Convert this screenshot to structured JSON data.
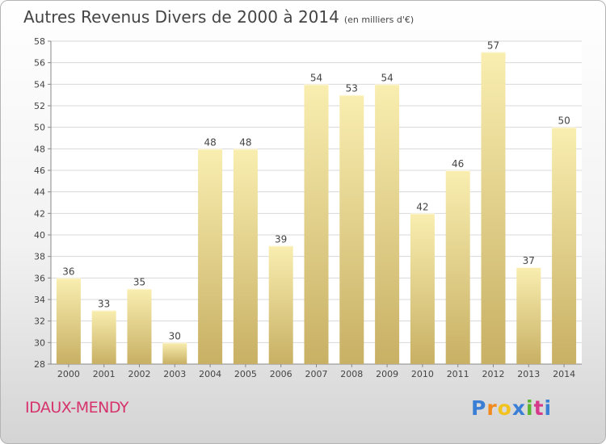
{
  "title": "Autres Revenus Divers de 2000 à 2014",
  "subtitle": "(en milliers d'€)",
  "city": "IDAUX-MENDY",
  "logo": {
    "letters": [
      "P",
      "r",
      "o",
      "x",
      "i",
      "t",
      "i"
    ],
    "colors": [
      "#3a7fd5",
      "#f28a1e",
      "#f2c21e",
      "#3a7fd5",
      "#5cb531",
      "#d63a8a",
      "#3a7fd5"
    ]
  },
  "colors": {
    "bar_light": "#f9eeb0",
    "bar_dark": "#c8b064",
    "city": "#d6336c",
    "grid": "#d8d8d8"
  },
  "chart_data": {
    "type": "bar",
    "title": "Autres Revenus Divers de 2000 à 2014",
    "subtitle": "(en milliers d'€)",
    "categories": [
      "2000",
      "2001",
      "2002",
      "2003",
      "2004",
      "2005",
      "2006",
      "2007",
      "2008",
      "2009",
      "2010",
      "2011",
      "2012",
      "2013",
      "2014"
    ],
    "values": [
      36,
      33,
      35,
      30,
      48,
      48,
      39,
      54,
      53,
      54,
      42,
      46,
      57,
      37,
      50
    ],
    "ylim": [
      28,
      58
    ],
    "yticks": [
      28,
      30,
      32,
      34,
      36,
      38,
      40,
      42,
      44,
      46,
      48,
      50,
      52,
      54,
      56,
      58
    ],
    "grid": true,
    "xlabel": "",
    "ylabel": ""
  }
}
